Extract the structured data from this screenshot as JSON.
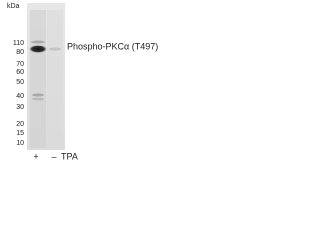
{
  "unit": "kDa",
  "markers": [
    110,
    80,
    70,
    60,
    50,
    40,
    30,
    20,
    15,
    10
  ],
  "band_label": "Phospho-PKCα (T497)",
  "lanes": [
    "+",
    "–"
  ],
  "treatment": "TPA"
}
